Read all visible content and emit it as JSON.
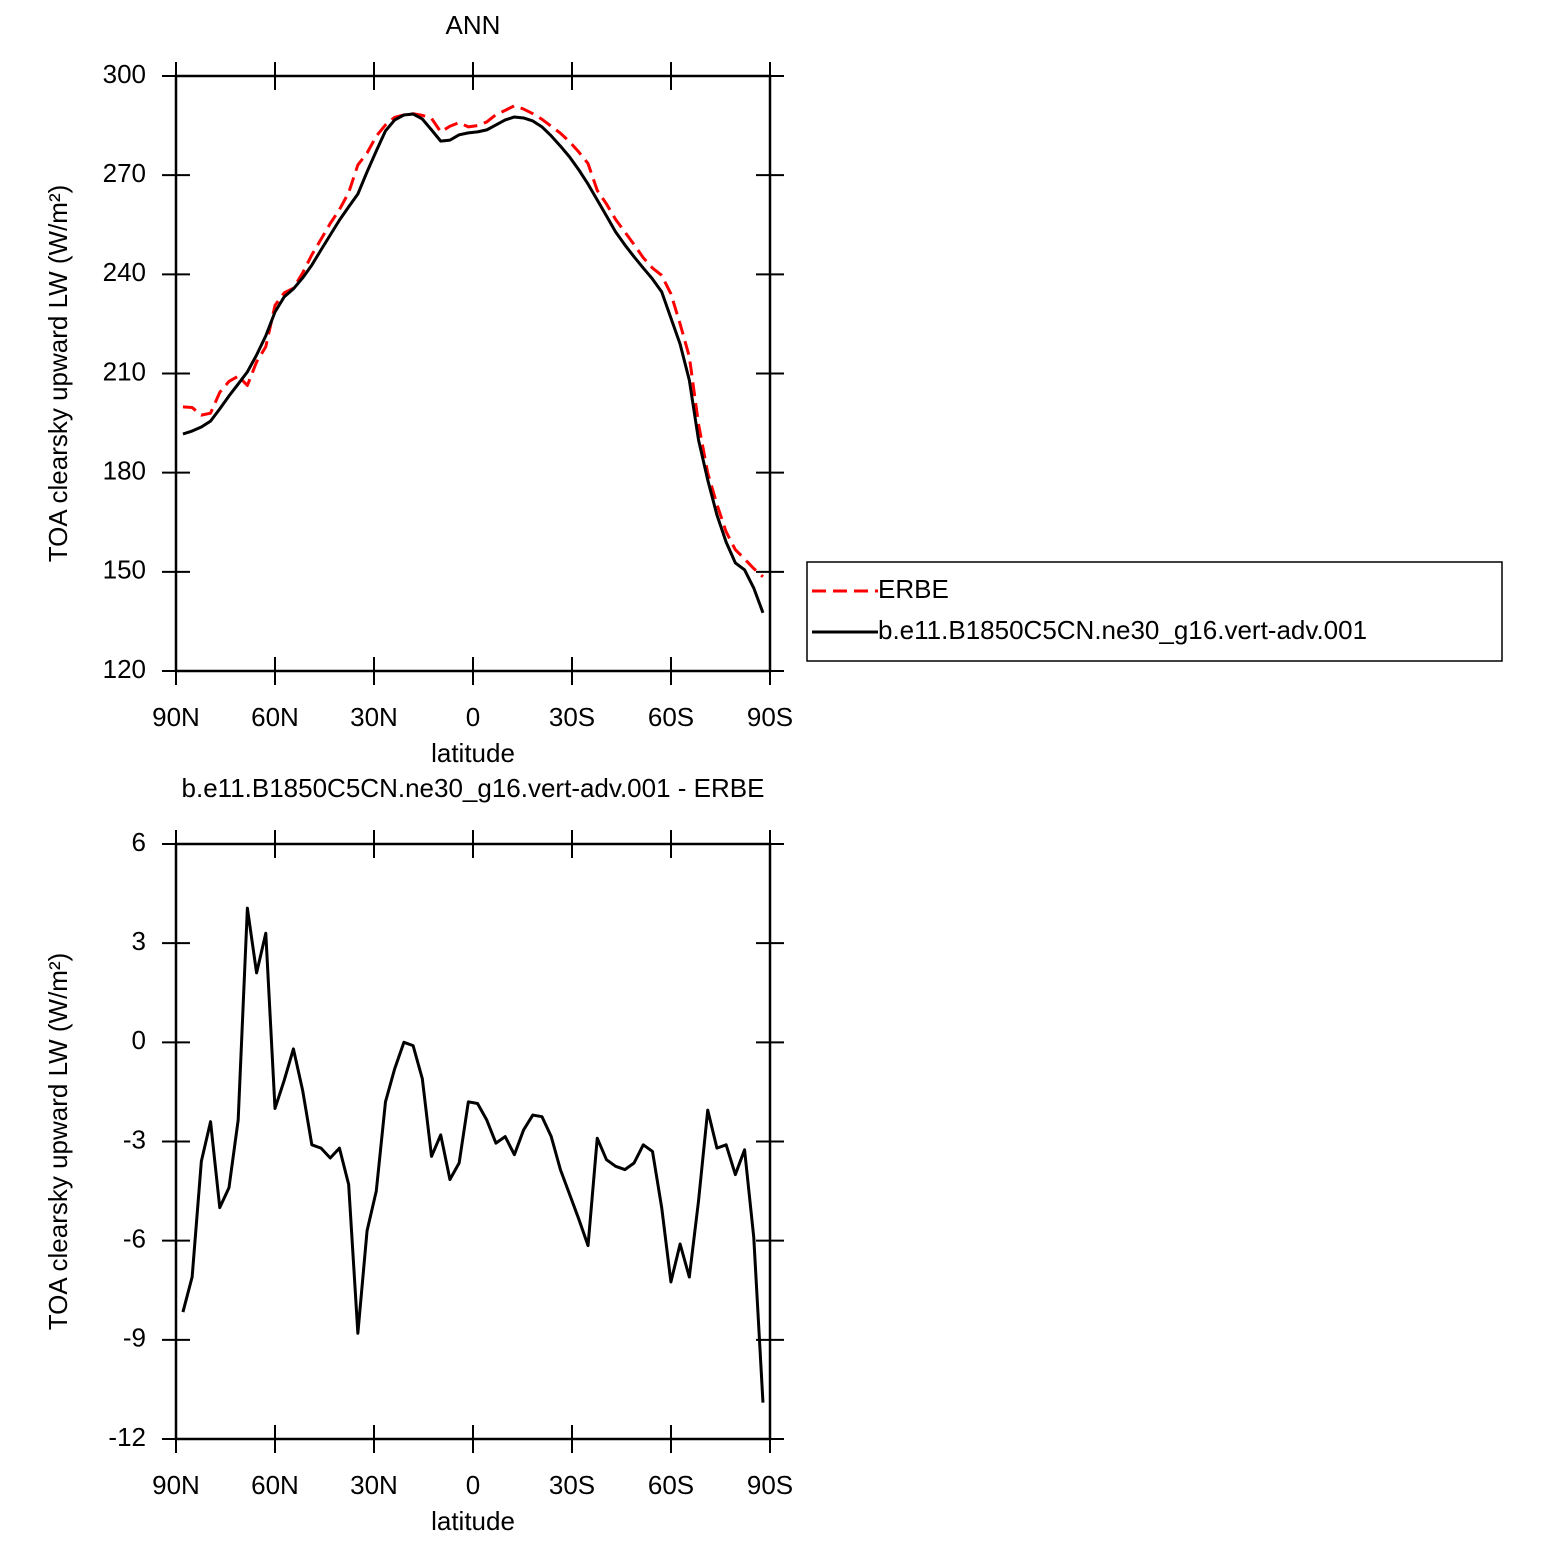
{
  "chart_data": [
    {
      "type": "line",
      "title": "ANN",
      "xlabel": "latitude",
      "ylabel": "TOA clearsky upward LW (W/m²)",
      "x": [
        87.9,
        85.11,
        82.32,
        79.53,
        76.74,
        73.95,
        71.16,
        68.37,
        65.58,
        62.79,
        60.0,
        57.21,
        54.42,
        51.63,
        48.84,
        46.05,
        43.26,
        40.47,
        37.68,
        34.89,
        32.1,
        29.31,
        26.52,
        23.73,
        20.94,
        18.15,
        15.36,
        12.57,
        9.78,
        6.99,
        4.2,
        1.41,
        -1.38,
        -4.17,
        -6.96,
        -9.75,
        -12.54,
        -15.33,
        -18.12,
        -20.91,
        -23.7,
        -26.49,
        -29.28,
        -32.07,
        -34.86,
        -37.65,
        -40.44,
        -43.23,
        -46.02,
        -48.81,
        -51.6,
        -54.39,
        -57.18,
        -59.97,
        -62.76,
        -65.55,
        -68.34,
        -71.13,
        -73.92,
        -76.71,
        -79.5,
        -82.29,
        -85.08,
        -87.87
      ],
      "series": [
        {
          "name": "ERBE",
          "color": "#ff0000",
          "line_style": "dashed",
          "values": [
            199.9,
            199.7,
            197.4,
            198.0,
            204.3,
            207.6,
            209.2,
            206.4,
            213.5,
            218.1,
            230.6,
            234.4,
            235.8,
            240.4,
            245.9,
            250.6,
            255.4,
            259.6,
            264.7,
            273.1,
            276.7,
            281.8,
            285.2,
            287.5,
            288.2,
            288.6,
            288.1,
            287.2,
            283.1,
            284.8,
            285.9,
            284.6,
            285.0,
            286.1,
            288.3,
            289.6,
            291.0,
            290.0,
            288.6,
            286.9,
            284.8,
            282.7,
            280.1,
            277.0,
            273.5,
            265.4,
            261.3,
            256.6,
            252.8,
            249.0,
            245.0,
            241.9,
            239.7,
            234.1,
            225.0,
            215.1,
            194.7,
            179.9,
            170.4,
            162.1,
            156.7,
            153.9,
            151.0,
            148.5
          ]
        },
        {
          "name": "b.e11.B1850C5CN.ne30_g16.vert-adv.001",
          "color": "#000000",
          "line_style": "solid",
          "values": [
            191.7,
            192.6,
            193.8,
            195.6,
            199.3,
            203.2,
            206.8,
            210.5,
            215.6,
            221.4,
            228.6,
            233.2,
            235.6,
            238.9,
            242.8,
            247.4,
            251.9,
            256.4,
            260.4,
            264.3,
            271.0,
            277.3,
            283.4,
            286.7,
            288.2,
            288.5,
            287.0,
            283.7,
            280.3,
            280.6,
            282.2,
            282.8,
            283.1,
            283.7,
            285.2,
            286.7,
            287.6,
            287.3,
            286.4,
            284.6,
            281.9,
            278.8,
            275.5,
            271.6,
            267.3,
            262.5,
            257.7,
            252.8,
            248.9,
            245.3,
            241.9,
            238.6,
            234.7,
            226.8,
            218.9,
            208.0,
            189.9,
            177.8,
            167.2,
            159.0,
            152.7,
            150.6,
            145.1,
            137.6
          ]
        }
      ],
      "xlim": [
        90,
        -90
      ],
      "xticks": [
        {
          "value": 90,
          "label": "90N"
        },
        {
          "value": 60,
          "label": "60N"
        },
        {
          "value": 30,
          "label": "30N"
        },
        0,
        {
          "value": -30,
          "label": "30S"
        },
        {
          "value": -60,
          "label": "60S"
        },
        {
          "value": -90,
          "label": "90S"
        }
      ],
      "ylim": [
        120,
        300
      ],
      "yticks": [
        120,
        150,
        180,
        210,
        240,
        270,
        300
      ],
      "legend": "right"
    },
    {
      "type": "line",
      "title": "b.e11.B1850C5CN.ne30_g16.vert-adv.001 - ERBE",
      "xlabel": "latitude",
      "ylabel": "TOA clearsky upward LW (W/m²)",
      "x": [
        87.9,
        85.11,
        82.32,
        79.53,
        76.74,
        73.95,
        71.16,
        68.37,
        65.58,
        62.79,
        60.0,
        57.21,
        54.42,
        51.63,
        48.84,
        46.05,
        43.26,
        40.47,
        37.68,
        34.89,
        32.1,
        29.31,
        26.52,
        23.73,
        20.94,
        18.15,
        15.36,
        12.57,
        9.78,
        6.99,
        4.2,
        1.41,
        -1.38,
        -4.17,
        -6.96,
        -9.75,
        -12.54,
        -15.33,
        -18.12,
        -20.91,
        -23.7,
        -26.49,
        -29.28,
        -32.07,
        -34.86,
        -37.65,
        -40.44,
        -43.23,
        -46.02,
        -48.81,
        -51.6,
        -54.39,
        -57.18,
        -59.97,
        -62.76,
        -65.55,
        -68.34,
        -71.13,
        -73.92,
        -76.71,
        -79.5,
        -82.29,
        -85.08,
        -87.87
      ],
      "color": "#000000",
      "values": [
        -8.16,
        -7.1,
        -3.6,
        -2.4,
        -5.0,
        -4.4,
        -2.35,
        4.06,
        2.1,
        3.3,
        -2.0,
        -1.15,
        -0.2,
        -1.45,
        -3.1,
        -3.2,
        -3.5,
        -3.2,
        -4.3,
        -8.8,
        -5.7,
        -4.5,
        -1.8,
        -0.8,
        0.0,
        -0.1,
        -1.1,
        -3.45,
        -2.8,
        -4.15,
        -3.65,
        -1.8,
        -1.85,
        -2.35,
        -3.05,
        -2.85,
        -3.4,
        -2.65,
        -2.2,
        -2.25,
        -2.85,
        -3.85,
        -4.6,
        -5.35,
        -6.15,
        -2.9,
        -3.55,
        -3.75,
        -3.85,
        -3.65,
        -3.1,
        -3.3,
        -5.0,
        -7.25,
        -6.1,
        -7.1,
        -4.8,
        -2.05,
        -3.2,
        -3.1,
        -4.0,
        -3.25,
        -5.9,
        -10.9
      ],
      "xlim": [
        90,
        -90
      ],
      "xticks": [
        {
          "value": 90,
          "label": "90N"
        },
        {
          "value": 60,
          "label": "60N"
        },
        {
          "value": 30,
          "label": "30N"
        },
        0,
        {
          "value": -30,
          "label": "30S"
        },
        {
          "value": -60,
          "label": "60S"
        },
        {
          "value": -90,
          "label": "90S"
        }
      ],
      "ylim": [
        -12,
        6
      ],
      "yticks": [
        -12,
        -9,
        -6,
        -3,
        0,
        3,
        6
      ]
    }
  ]
}
